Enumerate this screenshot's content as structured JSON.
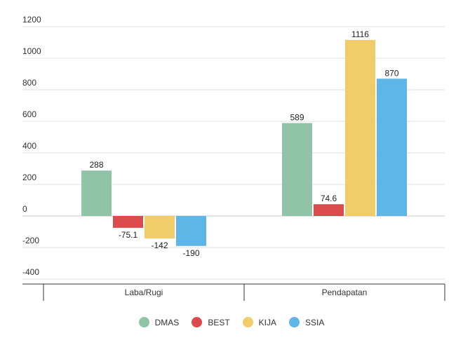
{
  "chart_data": {
    "type": "bar",
    "categories": [
      "Laba/Rugi",
      "Pendapatan"
    ],
    "series": [
      {
        "name": "DMAS",
        "color": "#8fc4a6",
        "values": [
          288,
          589
        ],
        "labels": [
          "288",
          "589"
        ]
      },
      {
        "name": "BEST",
        "color": "#dc4b4b",
        "values": [
          -75.1,
          74.6
        ],
        "labels": [
          "-75.1",
          "74.6"
        ]
      },
      {
        "name": "KIJA",
        "color": "#f0cc6a",
        "values": [
          -142,
          1116
        ],
        "labels": [
          "-142",
          "1116"
        ]
      },
      {
        "name": "SSIA",
        "color": "#5eb6e6",
        "values": [
          -190,
          870
        ],
        "labels": [
          "-190",
          "870"
        ]
      }
    ],
    "yticks": [
      1200,
      1000,
      800,
      600,
      400,
      200,
      0,
      -200,
      -400
    ],
    "ylim": [
      -400,
      1200
    ],
    "grid": true,
    "legend": "bottom"
  }
}
